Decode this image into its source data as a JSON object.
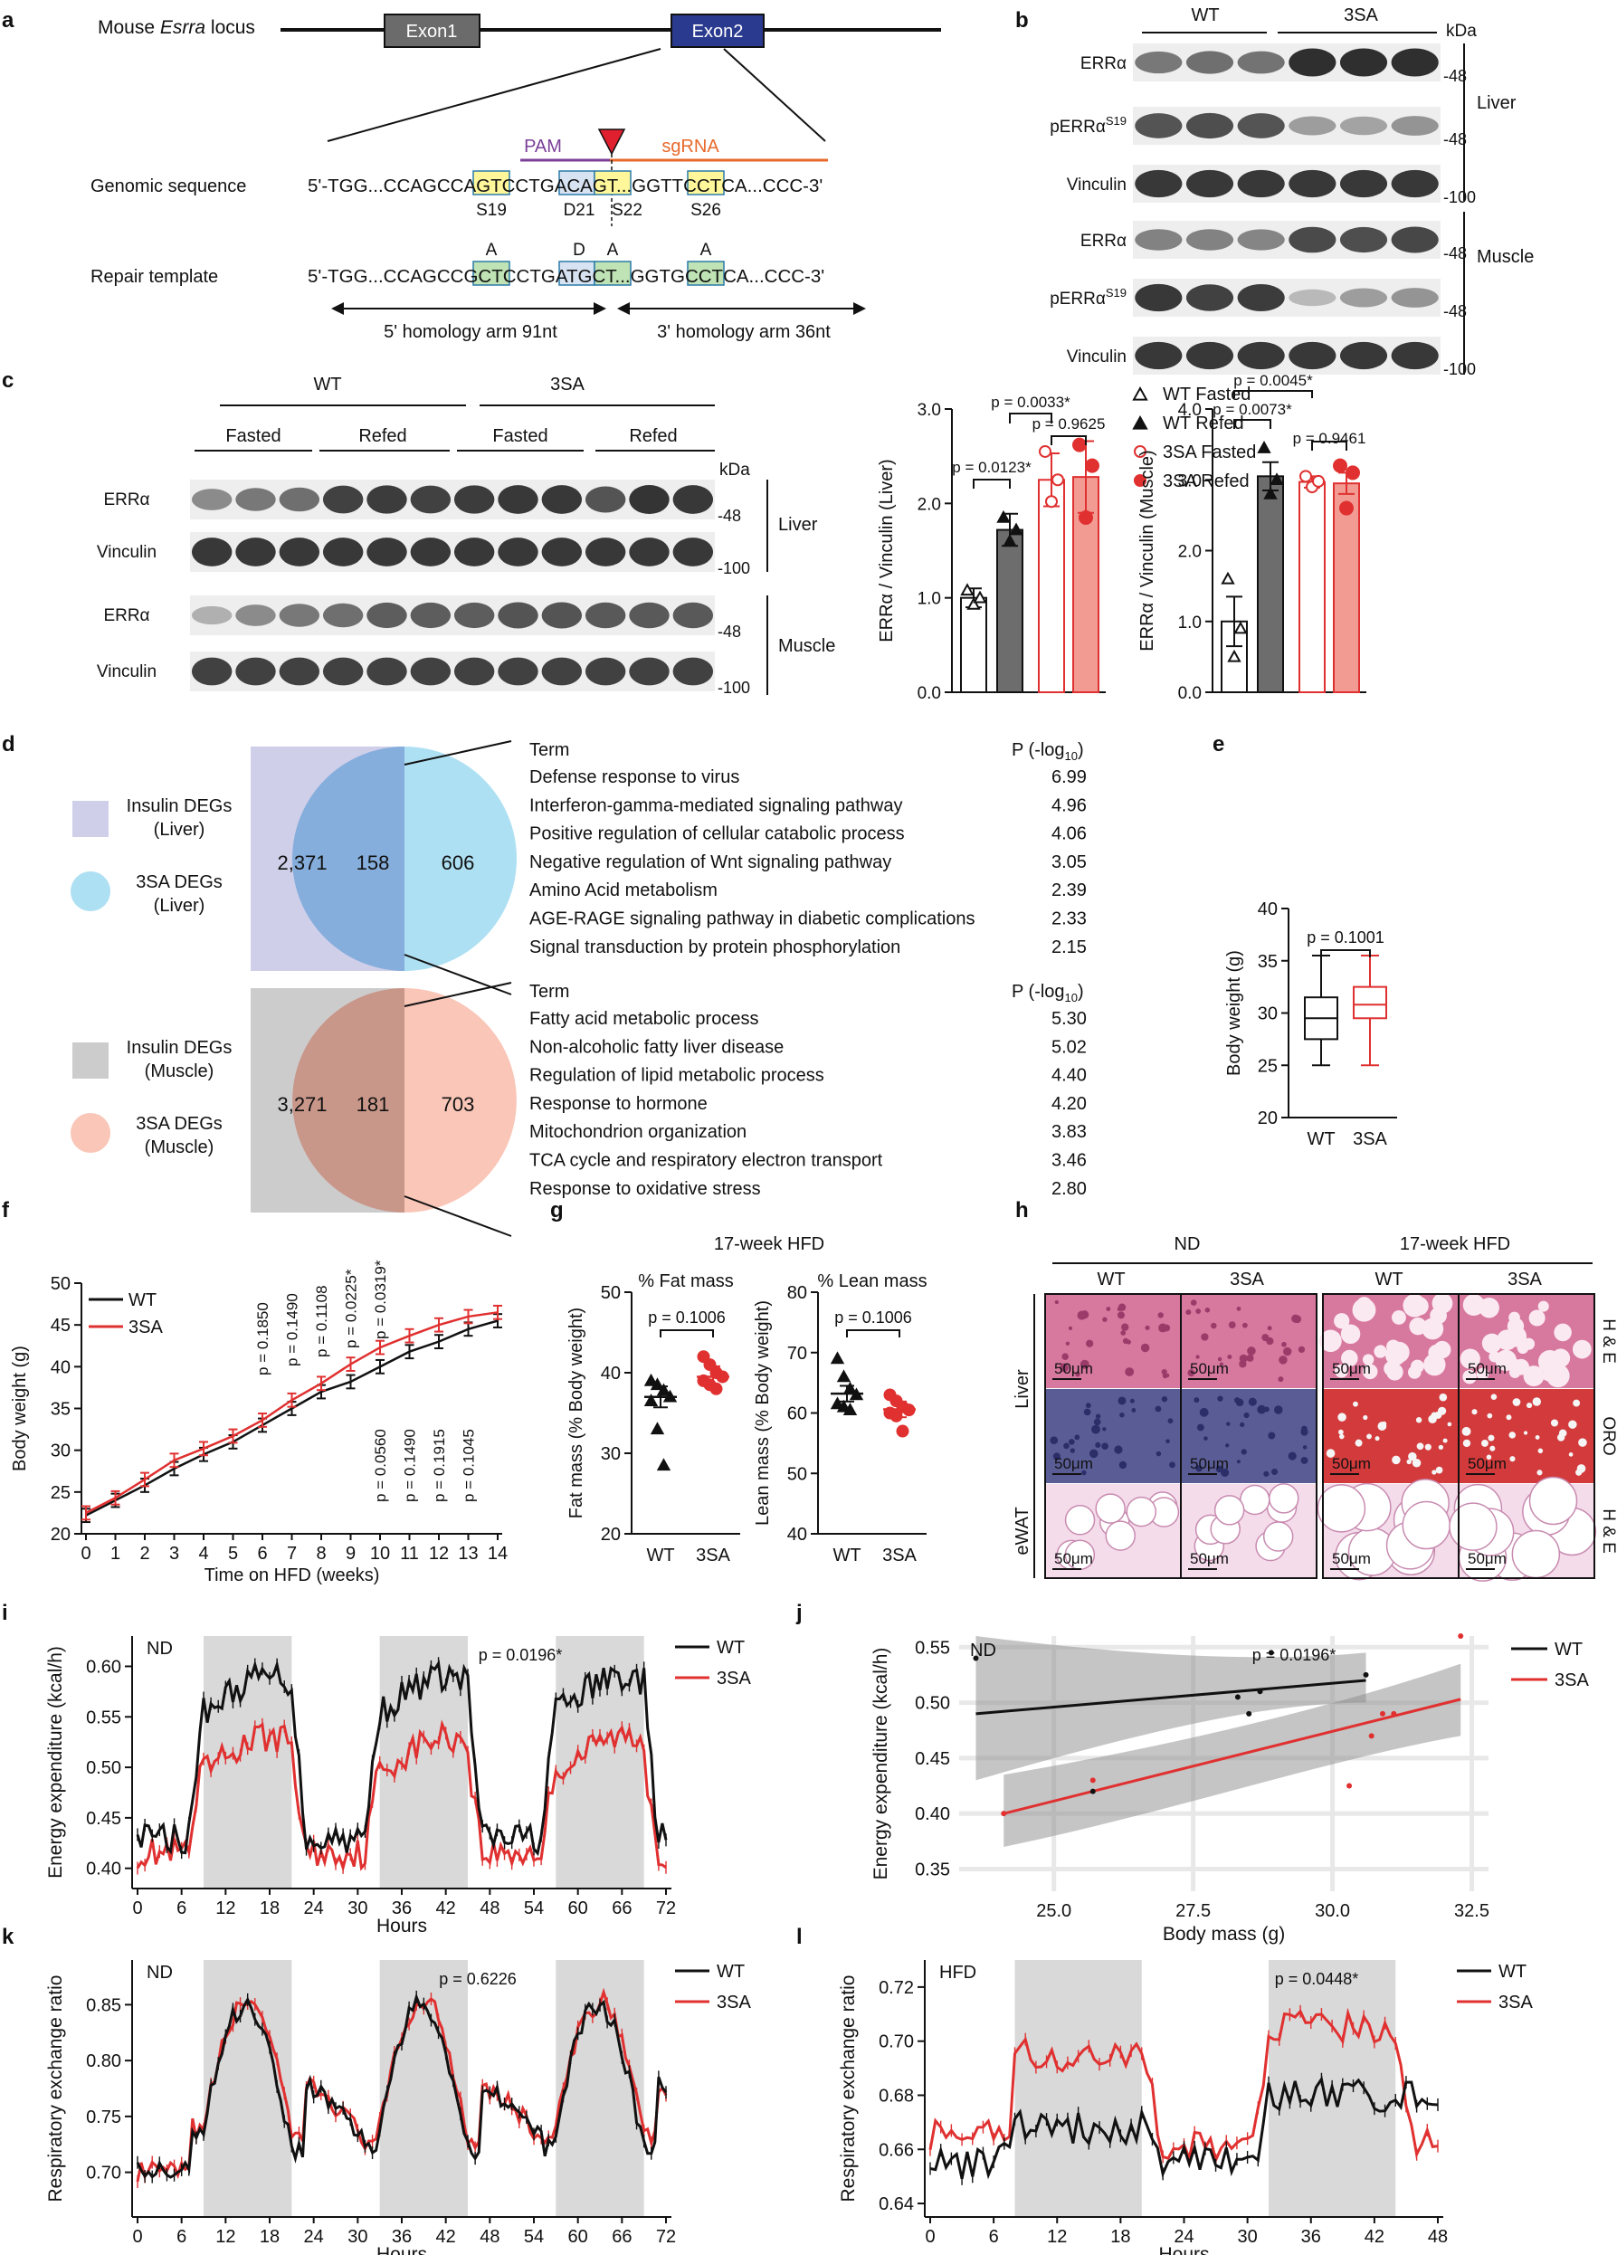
{
  "panels": [
    "a",
    "b",
    "c",
    "d",
    "e",
    "f",
    "g",
    "h",
    "i",
    "j",
    "k",
    "l"
  ],
  "a": {
    "locus": {
      "prefix": "Mouse ",
      "gene": "Esrra",
      "suffix": " locus"
    },
    "exon1": "Exon1",
    "exon2": "Exon2",
    "pam": "PAM",
    "sgrna": "sgRNA",
    "genomic_label": "Genomic sequence",
    "genomic_seq": "5'-TGG...CCAGCCAGTCCTGACAGT...GGTTCCTCA...CCC-3'",
    "repair_label": "Repair template",
    "repair_seq": "5'-TGG...CCAGCCGCTCCTGATGCT...GGTGCCTCA...CCC-3'",
    "sites": [
      "S19",
      "D21",
      "S22",
      "S26"
    ],
    "mutations": [
      "A",
      "D",
      "A",
      "A"
    ],
    "arm5": "5' homology arm 91nt",
    "arm3": "3' homology arm 36nt",
    "colors": {
      "pam": "#7b3f98",
      "sgrna": "#e8692b",
      "cut": "#e0202e",
      "box_yellow": "#fff79a",
      "box_green": "#bfe3b4",
      "box_blue": "#d7e3f2",
      "exon1": "#6b6b6b",
      "exon2": "#2a3a8f"
    }
  },
  "b": {
    "groups": [
      "WT",
      "3SA"
    ],
    "kda": "kDa",
    "rows": [
      {
        "protein": "ERRα",
        "mw": "-48"
      },
      {
        "protein": "pERRα",
        "sup": "S19",
        "mw": "-48"
      },
      {
        "protein": "Vinculin",
        "mw": "-100"
      },
      {
        "protein": "ERRα",
        "mw": "-48"
      },
      {
        "protein": "pERRα",
        "sup": "S19",
        "mw": "-48"
      },
      {
        "protein": "Vinculin",
        "mw": "-100"
      }
    ],
    "tissues": [
      "Liver",
      "Muscle"
    ]
  },
  "c": {
    "groups": [
      "WT",
      "3SA"
    ],
    "conditions": [
      "Fasted",
      "Refed",
      "Fasted",
      "Refed"
    ],
    "kda": "kDa",
    "rows": [
      {
        "protein": "ERRα",
        "mw": "-48"
      },
      {
        "protein": "Vinculin",
        "mw": "-100"
      },
      {
        "protein": "ERRα",
        "mw": "-48"
      },
      {
        "protein": "Vinculin",
        "mw": "-100"
      }
    ],
    "tissues": [
      "Liver",
      "Muscle"
    ],
    "legend": [
      "WT Fasted",
      "WT Refed",
      "3SA Fasted",
      "3SA Refed"
    ]
  },
  "d": {
    "liver": {
      "insulin_label": [
        "Insulin DEGs",
        "(Liver)"
      ],
      "sa_label": [
        "3SA DEGs",
        "(Liver)"
      ],
      "counts": [
        "2,371",
        "158",
        "606"
      ],
      "term_header": "Term",
      "p_header": "P (-log",
      "p_sub": "10",
      "p_close": ")",
      "terms": [
        [
          "Defense response to virus",
          "6.99"
        ],
        [
          "Interferon-gamma-mediated signaling pathway",
          "4.96"
        ],
        [
          "Positive regulation of cellular catabolic process",
          "4.06"
        ],
        [
          "Negative regulation of Wnt signaling pathway",
          "3.05"
        ],
        [
          "Amino Acid metabolism",
          "2.39"
        ],
        [
          "AGE-RAGE signaling pathway in diabetic complications",
          "2.33"
        ],
        [
          "Signal transduction by protein phosphorylation",
          "2.15"
        ]
      ]
    },
    "muscle": {
      "insulin_label": [
        "Insulin DEGs",
        "(Muscle)"
      ],
      "sa_label": [
        "3SA DEGs",
        "(Muscle)"
      ],
      "counts": [
        "3,271",
        "181",
        "703"
      ],
      "term_header": "Term",
      "p_header": "P (-log",
      "p_sub": "10",
      "p_close": ")",
      "terms": [
        [
          "Fatty acid metabolic process",
          "5.30"
        ],
        [
          "Non-alcoholic fatty liver disease",
          "5.02"
        ],
        [
          "Regulation of lipid metabolic process",
          "4.40"
        ],
        [
          "Response to hormone",
          "4.20"
        ],
        [
          "Mitochondrion organization",
          "3.83"
        ],
        [
          "TCA cycle and respiratory electron transport",
          "3.46"
        ],
        [
          "Response to oxidative stress",
          "2.80"
        ]
      ]
    },
    "colors": {
      "liver_box": "#cfcfea",
      "liver_circle": "#aee0f3",
      "liver_overlap": "#86aedc",
      "muscle_box": "#cccccc",
      "muscle_circle": "#f9c6b8",
      "muscle_overlap": "#c9978a"
    }
  },
  "h": {
    "diet": [
      "ND",
      "17-week HFD"
    ],
    "genotypes": [
      "WT",
      "3SA",
      "WT",
      "3SA"
    ],
    "tissues": [
      "Liver",
      "eWAT"
    ],
    "stains": [
      "H & E",
      "ORO",
      "H & E"
    ],
    "scale": "50μm",
    "colors": {
      "he": "#d7789e",
      "oro_nd": "#5a5c96",
      "oro_hfd": "#d23a3c",
      "wat": "#f4dceb"
    }
  },
  "chart_data": [
    {
      "panel": "c-left",
      "type": "bar",
      "ylabel": "ERRα / Vinculin (Liver)",
      "ylim": [
        0,
        3
      ],
      "yticks": [
        "0.0",
        "1.0",
        "2.0",
        "3.0"
      ],
      "categories": [
        "WT Fasted",
        "WT Refed",
        "3SA Fasted",
        "3SA Refed"
      ],
      "values": [
        1.0,
        1.72,
        2.25,
        2.28
      ],
      "errors": [
        0.1,
        0.17,
        0.28,
        0.38
      ],
      "points": [
        [
          1.08,
          0.93,
          1.0
        ],
        [
          1.85,
          1.6,
          1.72
        ],
        [
          2.55,
          2.02,
          2.25
        ],
        [
          2.62,
          1.85,
          2.4
        ]
      ],
      "annotations": [
        "p = 0.0033*",
        "p = 0.0123*",
        "p = 0.9625"
      ]
    },
    {
      "panel": "c-right",
      "type": "bar",
      "ylabel": "ERRα / Vinculin (Muscle)",
      "ylim": [
        0,
        4
      ],
      "yticks": [
        "0.0",
        "1.0",
        "2.0",
        "3.0",
        "4.0"
      ],
      "categories": [
        "WT Fasted",
        "WT Refed",
        "3SA Fasted",
        "3SA Refed"
      ],
      "values": [
        1.0,
        3.05,
        2.97,
        2.95
      ],
      "errors": [
        0.35,
        0.2,
        0.08,
        0.15
      ],
      "points": [
        [
          1.6,
          0.5,
          0.9
        ],
        [
          3.45,
          2.8,
          3.0
        ],
        [
          3.05,
          2.9,
          2.98
        ],
        [
          3.2,
          2.6,
          3.1
        ]
      ],
      "annotations": [
        "p = 0.0045*",
        "p = 0.0073*",
        "p = 0.9461"
      ]
    },
    {
      "panel": "e",
      "type": "box",
      "ylabel": "Body weight (g)",
      "ylim": [
        20,
        40
      ],
      "yticks": [
        "20",
        "25",
        "30",
        "35",
        "40"
      ],
      "categories": [
        "WT",
        "3SA"
      ],
      "boxes": [
        {
          "min": 25,
          "q1": 27.5,
          "median": 29.5,
          "q3": 31.5,
          "max": 35.5
        },
        {
          "min": 25,
          "q1": 29.5,
          "median": 30.8,
          "q3": 32.5,
          "max": 35.5
        }
      ],
      "annotations": [
        "p = 0.1001"
      ]
    },
    {
      "panel": "f",
      "type": "line",
      "xlabel": "Time on HFD (weeks)",
      "ylabel": "Body weight (g)",
      "ylim": [
        20,
        50
      ],
      "yticks": [
        "20",
        "25",
        "30",
        "35",
        "40",
        "45",
        "50"
      ],
      "x": [
        0,
        1,
        2,
        3,
        4,
        5,
        6,
        7,
        8,
        9,
        10,
        11,
        12,
        13,
        14
      ],
      "series": [
        {
          "name": "WT",
          "values": [
            22.2,
            24.0,
            25.8,
            27.8,
            29.5,
            31.0,
            33.0,
            35.0,
            37.0,
            38.2,
            40.0,
            41.8,
            43.0,
            44.5,
            45.5
          ]
        },
        {
          "name": "3SA",
          "values": [
            22.5,
            24.3,
            26.5,
            28.8,
            30.2,
            31.7,
            33.6,
            36.0,
            38.0,
            40.3,
            42.3,
            43.7,
            45.0,
            46.0,
            46.5
          ]
        }
      ],
      "p_values_top": [
        "p = 0.1850",
        "p = 0.1490",
        "p = 0.1108",
        "p = 0.0225*",
        "p = 0.0319*"
      ],
      "p_values_bottom": [
        "p = 0.0560",
        "p = 0.1490",
        "p = 0.1915",
        "p = 0.1045"
      ]
    },
    {
      "panel": "g-left",
      "type": "scatter",
      "title": "17-week HFD",
      "subtitle": "% Fat mass",
      "ylabel": "Fat mass (% Body weight)",
      "ylim": [
        20,
        50
      ],
      "yticks": [
        "20",
        "30",
        "40",
        "50"
      ],
      "categories": [
        "WT",
        "3SA"
      ],
      "points": [
        [
          39,
          38.5,
          37.8,
          37,
          36.5,
          33,
          28.5
        ],
        [
          42,
          41,
          40,
          39.5,
          39,
          38.5,
          38
        ]
      ],
      "means": [
        37,
        39.5
      ],
      "annotations": [
        "p = 0.1006"
      ]
    },
    {
      "panel": "g-right",
      "type": "scatter",
      "subtitle": "% Lean mass",
      "ylabel": "Lean mass (% Body weight)",
      "ylim": [
        40,
        80
      ],
      "yticks": [
        "40",
        "50",
        "60",
        "70",
        "80"
      ],
      "categories": [
        "WT",
        "3SA"
      ],
      "points": [
        [
          69,
          66,
          64,
          63,
          61.5,
          61,
          60.5
        ],
        [
          63,
          62,
          61,
          60.5,
          60,
          59.5,
          57
        ]
      ],
      "means": [
        63.2,
        60.6
      ],
      "annotations": [
        "p = 0.1006"
      ]
    },
    {
      "panel": "i",
      "type": "line",
      "label": "ND",
      "xlabel": "Hours",
      "ylabel": "Energy expenditure (kcal/h)",
      "ylim": [
        0.38,
        0.63
      ],
      "yticks": [
        "0.40",
        "0.45",
        "0.50",
        "0.55",
        "0.60"
      ],
      "xticks": [
        "0",
        "6",
        "12",
        "18",
        "24",
        "30",
        "36",
        "42",
        "48",
        "54",
        "60",
        "66",
        "72"
      ],
      "dark_periods": [
        [
          9,
          21
        ],
        [
          33,
          45
        ],
        [
          57,
          69
        ]
      ],
      "series": [
        {
          "name": "WT",
          "level_light": 0.43,
          "level_dark": 0.57
        },
        {
          "name": "3SA",
          "level_light": 0.415,
          "level_dark": 0.51
        }
      ],
      "annotations": [
        "p = 0.0196*"
      ]
    },
    {
      "panel": "j",
      "type": "scatter",
      "label": "ND",
      "xlabel": "Body mass (g)",
      "ylabel": "Energy expenditure (kcal/h)",
      "xlim": [
        23.3,
        32.8
      ],
      "ylim": [
        0.33,
        0.56
      ],
      "xticks": [
        "25.0",
        "27.5",
        "30.0",
        "32.5"
      ],
      "yticks": [
        "0.35",
        "0.40",
        "0.45",
        "0.50",
        "0.55"
      ],
      "series": [
        {
          "name": "WT",
          "x": [
            23.6,
            25.7,
            28.3,
            28.5,
            28.7,
            28.9,
            30.6
          ],
          "y": [
            0.54,
            0.42,
            0.505,
            0.49,
            0.51,
            0.545,
            0.525
          ],
          "fit": [
            [
              23.6,
              0.49
            ],
            [
              30.6,
              0.52
            ]
          ]
        },
        {
          "name": "3SA",
          "x": [
            24.1,
            25.7,
            30.3,
            30.7,
            30.9,
            31.1,
            32.3
          ],
          "y": [
            0.4,
            0.43,
            0.425,
            0.47,
            0.49,
            0.49,
            0.56
          ],
          "fit": [
            [
              24.1,
              0.4
            ],
            [
              32.3,
              0.503
            ]
          ]
        }
      ],
      "annotations": [
        "p = 0.0196*"
      ]
    },
    {
      "panel": "k",
      "type": "line",
      "label": "ND",
      "xlabel": "Hours",
      "ylabel": "Respiratory exchange ratio",
      "ylim": [
        0.66,
        0.89
      ],
      "yticks": [
        "0.70",
        "0.75",
        "0.80",
        "0.85"
      ],
      "xticks": [
        "0",
        "6",
        "12",
        "18",
        "24",
        "30",
        "36",
        "42",
        "48",
        "54",
        "60",
        "66",
        "72"
      ],
      "dark_periods": [
        [
          9,
          21
        ],
        [
          33,
          45
        ],
        [
          57,
          69
        ]
      ],
      "series": [
        {
          "name": "WT"
        },
        {
          "name": "3SA"
        }
      ],
      "annotations": [
        "p = 0.6226"
      ]
    },
    {
      "panel": "l",
      "type": "line",
      "label": "HFD",
      "xlabel": "Hours",
      "ylabel": "Respiratory exchange ratio",
      "ylim": [
        0.635,
        0.73
      ],
      "yticks": [
        "0.64",
        "0.66",
        "0.68",
        "0.70",
        "0.72"
      ],
      "xticks": [
        "0",
        "6",
        "12",
        "18",
        "24",
        "30",
        "36",
        "42",
        "48"
      ],
      "dark_periods": [
        [
          8,
          20
        ],
        [
          32,
          44
        ]
      ],
      "series": [
        {
          "name": "WT"
        },
        {
          "name": "3SA"
        }
      ],
      "annotations": [
        "p = 0.0448*"
      ]
    }
  ],
  "colors": {
    "wt": "#000000",
    "sa": "#e03030",
    "wt_bar": "#6d6d6d",
    "sa_bar": "#f29b93",
    "shade": "#d9d9d9"
  }
}
